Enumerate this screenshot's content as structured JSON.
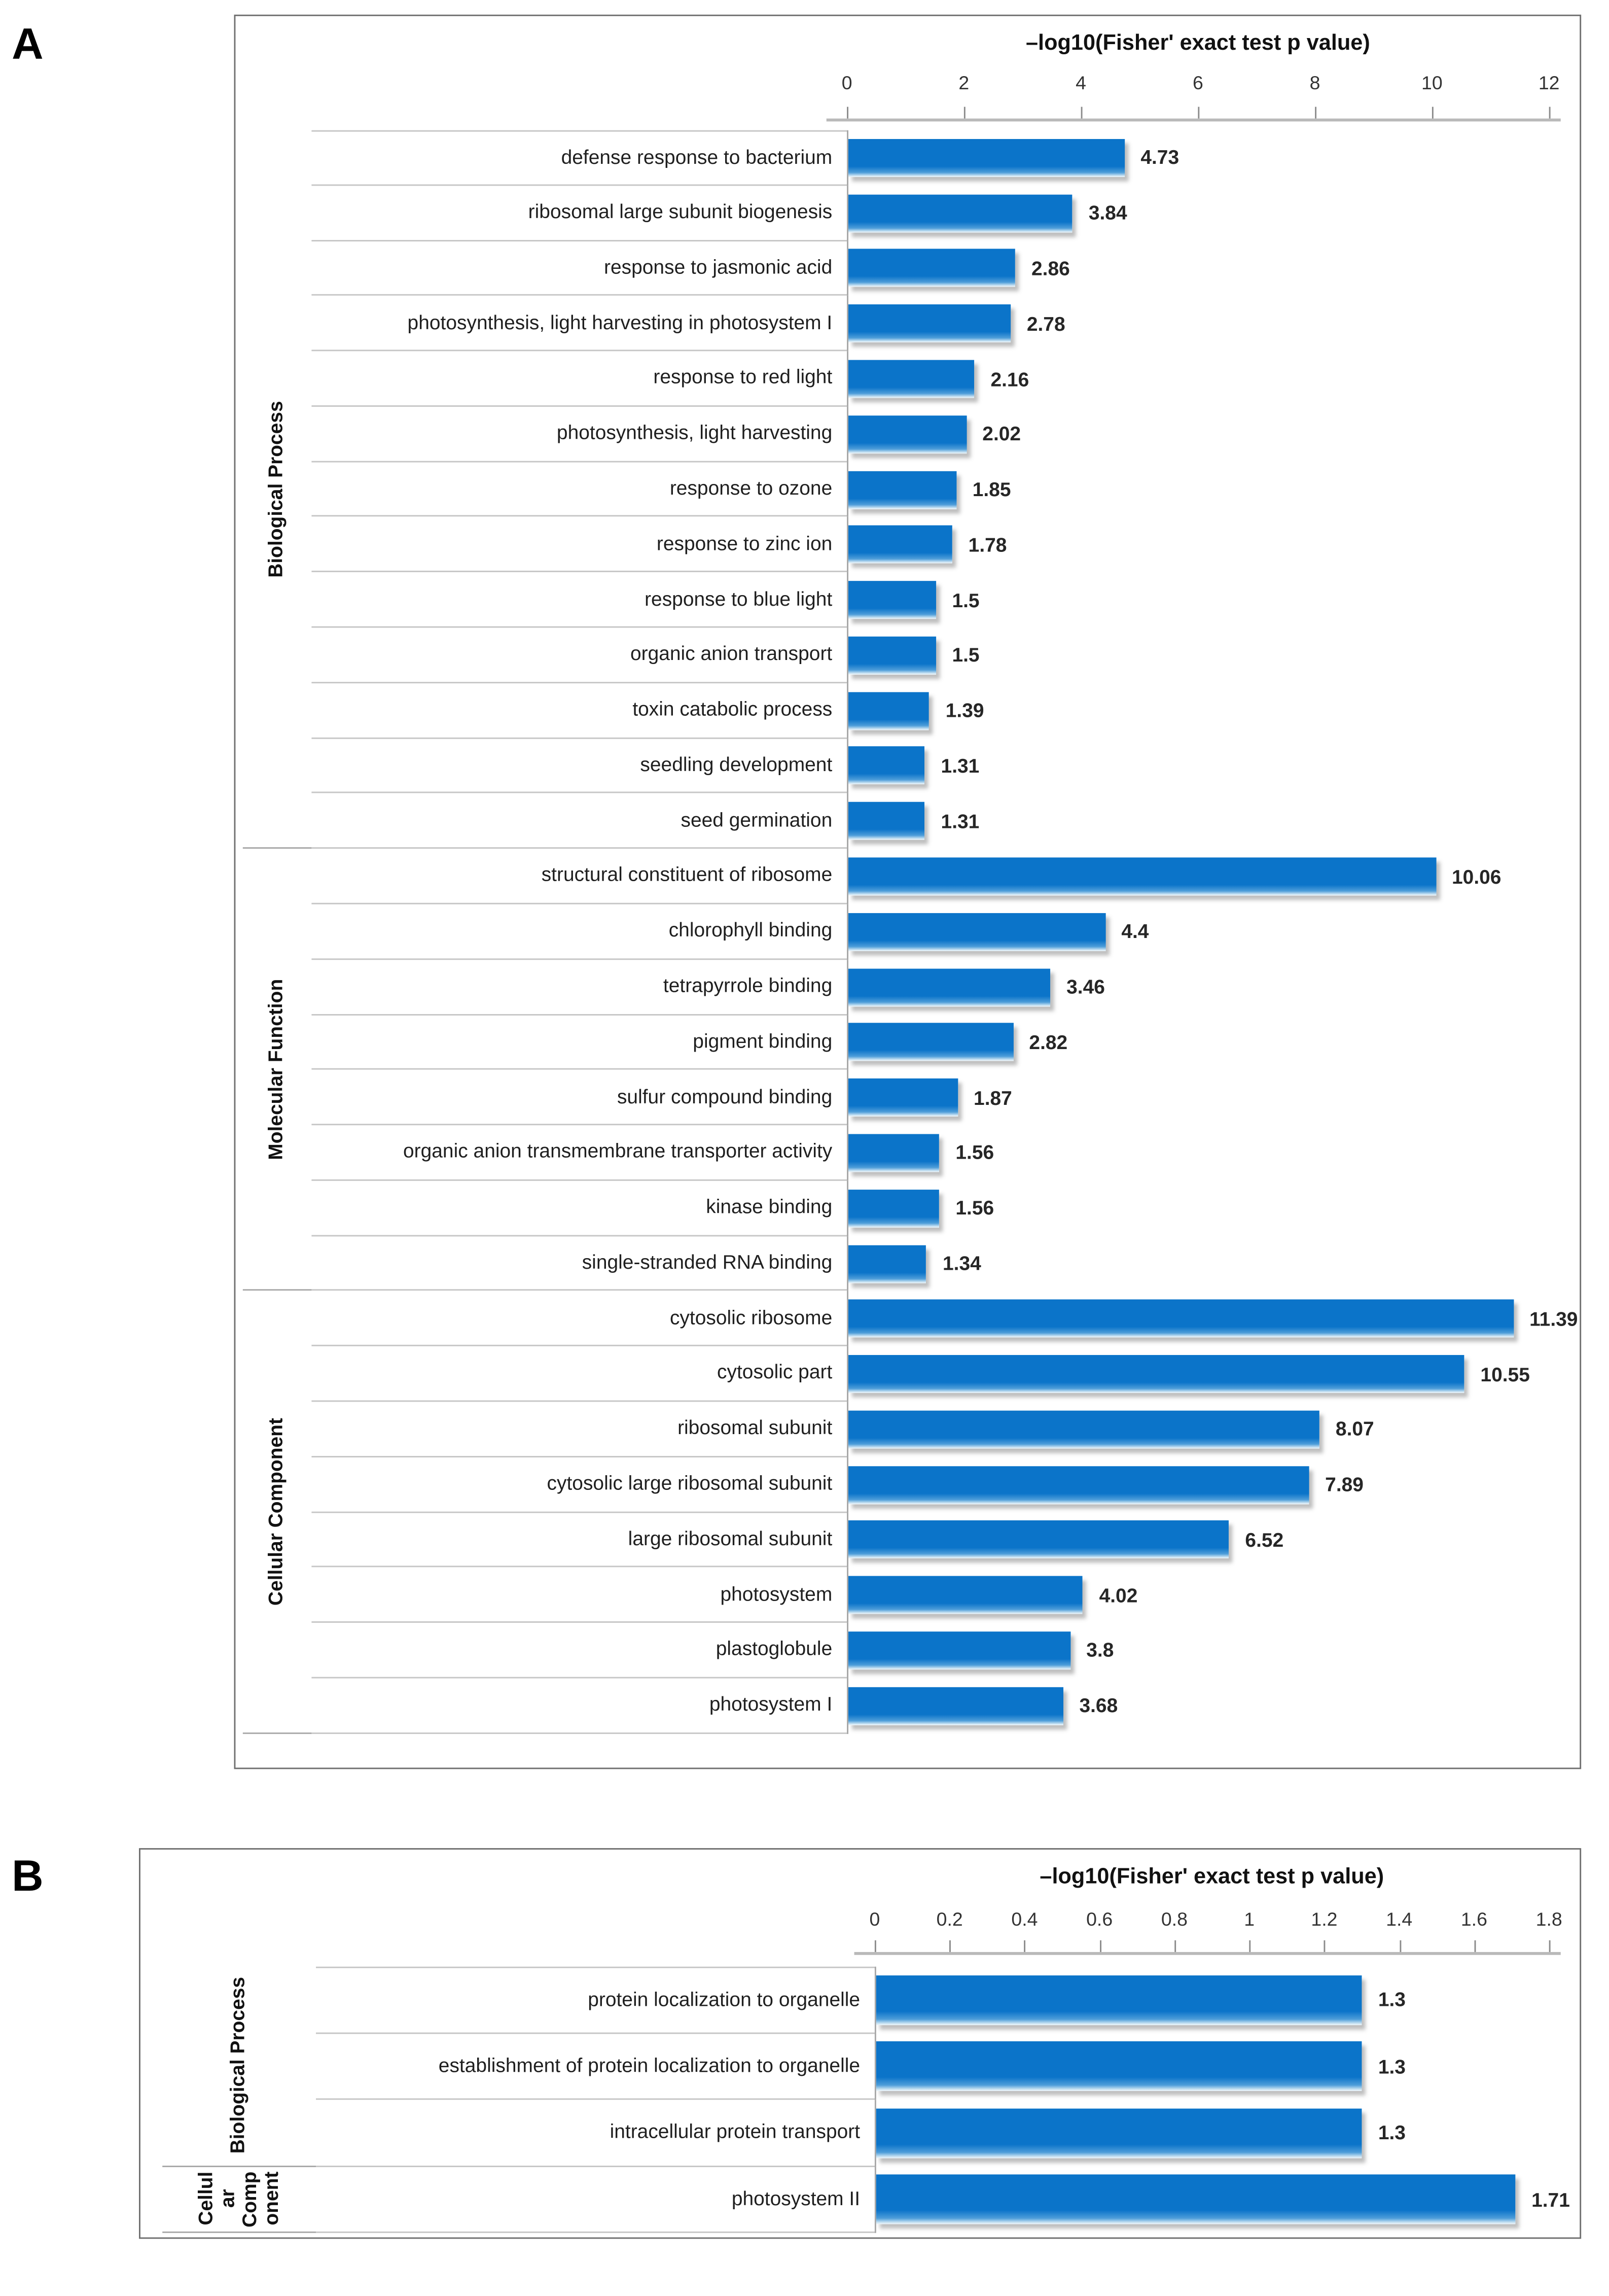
{
  "figure": {
    "panel_a_letter": "A",
    "panel_b_letter": "B"
  },
  "chart_data": [
    {
      "type": "bar",
      "orientation": "horizontal",
      "title": "–log10(Fisher' exact test p value)",
      "xlabel": "–log10(Fisher' exact test p value)",
      "xlim": [
        0,
        12
      ],
      "x_ticks": [
        0,
        2,
        4,
        6,
        8,
        10,
        12
      ],
      "tick_labels": [
        "0",
        "2",
        "4",
        "6",
        "8",
        "10",
        "12"
      ],
      "bar_color": "#0b74c9",
      "grid": false,
      "legend": "none",
      "groups": [
        {
          "name": "Biological Process",
          "items": [
            {
              "label": "defense response to bacterium",
              "value": 4.73,
              "display": "4.73"
            },
            {
              "label": "ribosomal large subunit biogenesis",
              "value": 3.84,
              "display": "3.84"
            },
            {
              "label": "response to jasmonic acid",
              "value": 2.86,
              "display": "2.86"
            },
            {
              "label": "photosynthesis, light harvesting in photosystem I",
              "value": 2.78,
              "display": "2.78"
            },
            {
              "label": "response to red light",
              "value": 2.16,
              "display": "2.16"
            },
            {
              "label": "photosynthesis, light harvesting",
              "value": 2.02,
              "display": "2.02"
            },
            {
              "label": "response to ozone",
              "value": 1.85,
              "display": "1.85"
            },
            {
              "label": "response to zinc ion",
              "value": 1.78,
              "display": "1.78"
            },
            {
              "label": "response to blue light",
              "value": 1.5,
              "display": "1.5"
            },
            {
              "label": "organic anion transport",
              "value": 1.5,
              "display": "1.5"
            },
            {
              "label": "toxin catabolic process",
              "value": 1.39,
              "display": "1.39"
            },
            {
              "label": "seedling development",
              "value": 1.31,
              "display": "1.31"
            },
            {
              "label": "seed germination",
              "value": 1.31,
              "display": "1.31"
            }
          ]
        },
        {
          "name": "Molecular Function",
          "items": [
            {
              "label": "structural constituent of ribosome",
              "value": 10.06,
              "display": "10.06"
            },
            {
              "label": "chlorophyll binding",
              "value": 4.4,
              "display": "4.4"
            },
            {
              "label": "tetrapyrrole binding",
              "value": 3.46,
              "display": "3.46"
            },
            {
              "label": "pigment binding",
              "value": 2.82,
              "display": "2.82"
            },
            {
              "label": "sulfur compound binding",
              "value": 1.87,
              "display": "1.87"
            },
            {
              "label": "organic anion transmembrane transporter activity",
              "value": 1.56,
              "display": "1.56"
            },
            {
              "label": "kinase binding",
              "value": 1.56,
              "display": "1.56"
            },
            {
              "label": "single-stranded RNA binding",
              "value": 1.34,
              "display": "1.34"
            }
          ]
        },
        {
          "name": "Cellular Component",
          "items": [
            {
              "label": "cytosolic ribosome",
              "value": 11.39,
              "display": "11.39"
            },
            {
              "label": "cytosolic part",
              "value": 10.55,
              "display": "10.55"
            },
            {
              "label": "ribosomal subunit",
              "value": 8.07,
              "display": "8.07"
            },
            {
              "label": "cytosolic large ribosomal subunit",
              "value": 7.89,
              "display": "7.89"
            },
            {
              "label": "large ribosomal subunit",
              "value": 6.52,
              "display": "6.52"
            },
            {
              "label": "photosystem",
              "value": 4.02,
              "display": "4.02"
            },
            {
              "label": "plastoglobule",
              "value": 3.8,
              "display": "3.8"
            },
            {
              "label": "photosystem I",
              "value": 3.68,
              "display": "3.68"
            }
          ]
        }
      ]
    },
    {
      "type": "bar",
      "orientation": "horizontal",
      "title": "–log10(Fisher' exact test p value)",
      "xlabel": "–log10(Fisher' exact test p value)",
      "xlim": [
        0,
        1.8
      ],
      "x_ticks": [
        0,
        0.2,
        0.4,
        0.6,
        0.8,
        1,
        1.2,
        1.4,
        1.6,
        1.8
      ],
      "tick_labels": [
        "0",
        "0.2",
        "0.4",
        "0.6",
        "0.8",
        "1",
        "1.2",
        "1.4",
        "1.6",
        "1.8"
      ],
      "bar_color": "#0b74c9",
      "grid": false,
      "legend": "none",
      "groups": [
        {
          "name": "Biological Process",
          "items": [
            {
              "label": "protein localization to organelle",
              "value": 1.3,
              "display": "1.3"
            },
            {
              "label": "establishment of protein localization to organelle",
              "value": 1.3,
              "display": "1.3"
            },
            {
              "label": "intracellular protein transport",
              "value": 1.3,
              "display": "1.3"
            }
          ]
        },
        {
          "name": "Cellular Component",
          "wrap_lines": [
            "Cellul",
            "ar",
            "Comp",
            "onent"
          ],
          "items": [
            {
              "label": "photosystem II",
              "value": 1.71,
              "display": "1.71"
            }
          ]
        }
      ]
    }
  ]
}
